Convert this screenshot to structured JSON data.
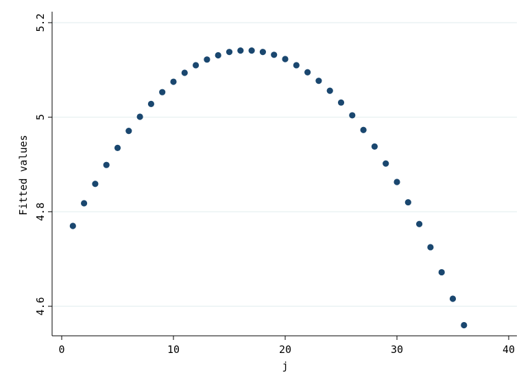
{
  "chart_data": {
    "type": "scatter",
    "title": "",
    "xlabel": "j",
    "ylabel": "Fitted values",
    "xlim": [
      0,
      40
    ],
    "ylim": [
      4.6,
      5.2
    ],
    "xticks": [
      0,
      10,
      20,
      30,
      40
    ],
    "xtick_labels": [
      "0",
      "10",
      "20",
      "30",
      "40"
    ],
    "yticks": [
      4.6,
      4.8,
      5.0,
      5.2
    ],
    "ytick_labels": [
      "4.6",
      "4.8",
      "5",
      "5.2"
    ],
    "grid": true,
    "legend": "none",
    "marker_color": "#1a476f",
    "grid_color": "#eaf2f3",
    "x": [
      1,
      2,
      3,
      4,
      5,
      6,
      7,
      8,
      9,
      10,
      11,
      12,
      13,
      14,
      15,
      16,
      17,
      18,
      19,
      20,
      21,
      22,
      23,
      24,
      25,
      26,
      27,
      28,
      29,
      30,
      31,
      32,
      33,
      34,
      35,
      36
    ],
    "y": [
      4.77,
      4.818,
      4.859,
      4.899,
      4.935,
      4.971,
      5.001,
      5.028,
      5.053,
      5.075,
      5.094,
      5.11,
      5.122,
      5.131,
      5.138,
      5.141,
      5.141,
      5.138,
      5.132,
      5.123,
      5.11,
      5.095,
      5.077,
      5.056,
      5.031,
      5.004,
      4.973,
      4.938,
      4.902,
      4.863,
      4.82,
      4.774,
      4.725,
      4.672,
      4.616,
      4.56
    ]
  }
}
